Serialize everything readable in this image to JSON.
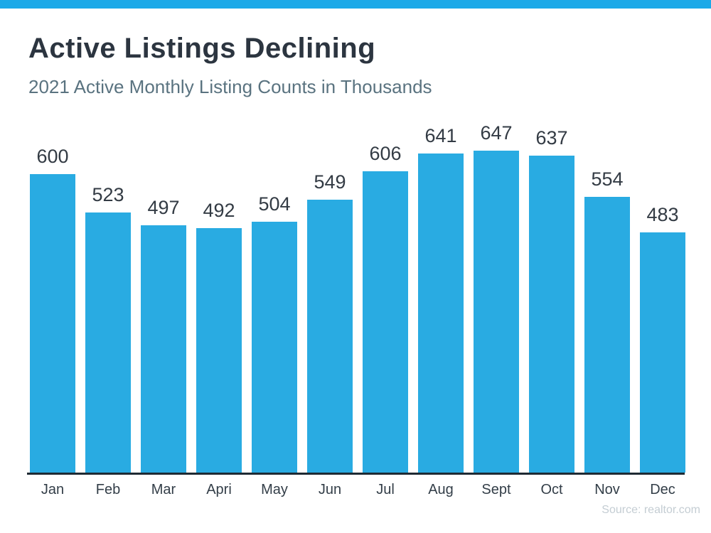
{
  "accent_color": "#1CA9E8",
  "header": {
    "title": "Active Listings Declining",
    "subtitle": "2021 Active Monthly Listing Counts in Thousands"
  },
  "source_text": "Source: realtor.com",
  "chart_data": {
    "type": "bar",
    "title": "Active Listings Declining",
    "subtitle": "2021 Active Monthly Listing Counts in Thousands",
    "categories": [
      "Jan",
      "Feb",
      "Mar",
      "Apri",
      "May",
      "Jun",
      "Jul",
      "Aug",
      "Sept",
      "Oct",
      "Nov",
      "Dec"
    ],
    "values": [
      600,
      523,
      497,
      492,
      504,
      549,
      606,
      641,
      647,
      637,
      554,
      483
    ],
    "xlabel": "",
    "ylabel": "",
    "ylim": [
      0,
      720
    ],
    "grid": false,
    "legend": "none",
    "value_labels": true,
    "bar_color": "#29ABE2",
    "value_label_color": "#333B44",
    "tick_label_color": "#333E48",
    "axis_color": "#1F2A33"
  }
}
